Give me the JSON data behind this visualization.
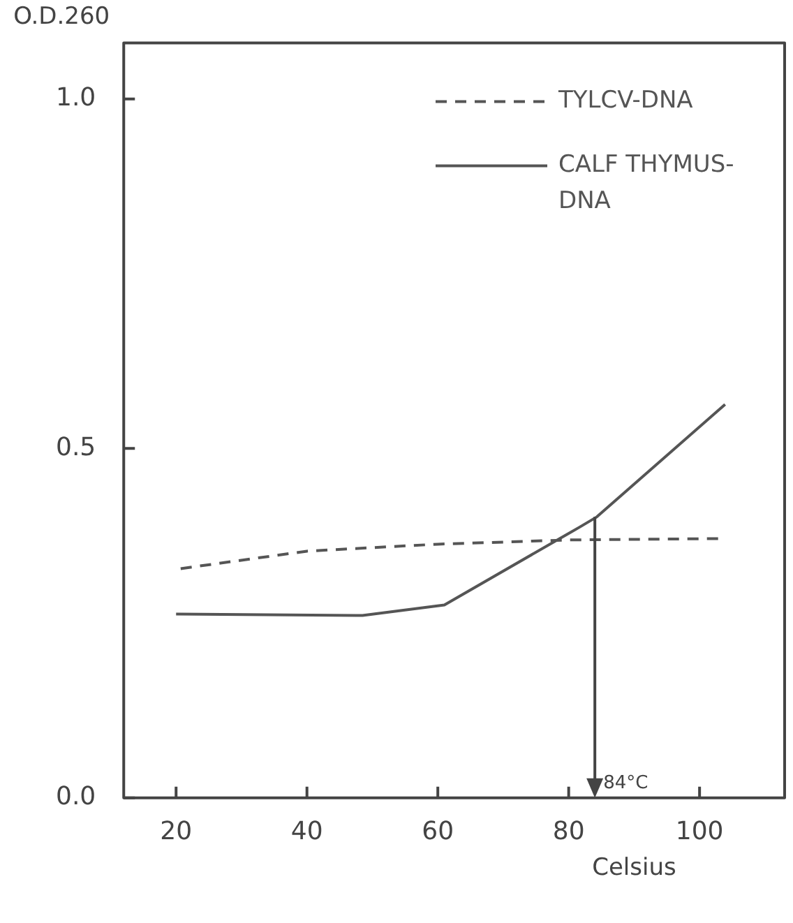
{
  "chart_data": {
    "type": "line",
    "xlabel": "Celsius",
    "ylabel": "O.D.260",
    "xlim": [
      12,
      113
    ],
    "xticks": [
      20,
      40,
      60,
      80,
      100
    ],
    "ylim": [
      0,
      1.08
    ],
    "yticks": [
      {
        "value": 0,
        "label": "0.0"
      },
      {
        "value": 0.5,
        "label": "0.5"
      },
      {
        "value": 1,
        "label": "1.0"
      }
    ],
    "grid": false,
    "legend": "top right",
    "marker": "none",
    "series": [
      {
        "name": "TYLCV-DNA",
        "color": "#555555",
        "line_style": "dashed",
        "x": [
          20.7,
          40,
          60,
          80,
          103.7
        ],
        "values": [
          0.328,
          0.353,
          0.363,
          0.369,
          0.371
        ]
      },
      {
        "name": "CALF THYMUS-DNA",
        "color": "#555555",
        "line_style": "solid",
        "x": [
          20,
          48.5,
          61,
          81.6,
          84.3,
          103.9
        ],
        "values": [
          0.263,
          0.261,
          0.276,
          0.387,
          0.402,
          0.563
        ]
      }
    ],
    "annotations": [
      {
        "text": "84°C",
        "x": 84,
        "y": 0.402
      }
    ]
  }
}
